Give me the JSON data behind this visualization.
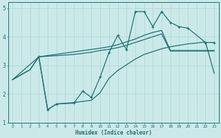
{
  "xlabel": "Humidex (Indice chaleur)",
  "bg_color": "#cce9e9",
  "line_color": "#1a7070",
  "grid_color": "#aad4d4",
  "xlim": [
    -0.5,
    23.5
  ],
  "ylim": [
    1,
    5.2
  ],
  "line1": {
    "x": [
      0,
      2,
      3,
      4,
      5,
      6,
      7,
      8,
      9,
      10,
      11,
      12,
      13,
      14,
      15,
      16,
      17,
      18,
      19,
      20,
      21,
      22,
      23
    ],
    "y": [
      2.5,
      2.85,
      3.3,
      3.32,
      3.34,
      3.36,
      3.38,
      3.42,
      3.46,
      3.52,
      3.56,
      3.62,
      3.7,
      3.8,
      3.9,
      4.0,
      4.1,
      3.5,
      3.5,
      3.5,
      3.5,
      3.5,
      3.5
    ]
  },
  "line2": {
    "x": [
      3,
      4,
      5,
      7,
      8,
      9,
      10,
      11,
      12,
      13,
      14,
      15,
      16,
      17,
      18,
      19,
      20,
      22,
      23
    ],
    "y": [
      3.3,
      1.45,
      1.65,
      1.68,
      2.1,
      1.88,
      2.6,
      3.45,
      4.05,
      3.55,
      4.88,
      4.88,
      4.35,
      4.88,
      4.5,
      4.35,
      4.3,
      3.8,
      3.8
    ]
  },
  "line3": {
    "x": [
      0,
      3,
      4,
      5,
      7,
      9,
      10,
      11,
      12,
      13,
      14,
      15,
      16,
      17,
      18,
      19,
      20,
      21,
      22,
      23
    ],
    "y": [
      2.5,
      3.3,
      1.45,
      1.65,
      1.7,
      1.78,
      2.05,
      2.55,
      2.82,
      3.02,
      3.22,
      3.38,
      3.48,
      3.58,
      3.65,
      3.7,
      3.75,
      3.78,
      3.82,
      2.72
    ]
  },
  "line4": {
    "x": [
      0,
      2,
      3,
      10,
      11,
      12,
      13,
      14,
      15,
      16,
      17,
      18,
      19,
      20,
      21,
      22,
      23
    ],
    "y": [
      2.5,
      2.85,
      3.3,
      3.6,
      3.65,
      3.72,
      3.82,
      3.92,
      4.05,
      4.15,
      4.22,
      3.52,
      3.52,
      3.52,
      3.52,
      3.52,
      3.52
    ]
  }
}
